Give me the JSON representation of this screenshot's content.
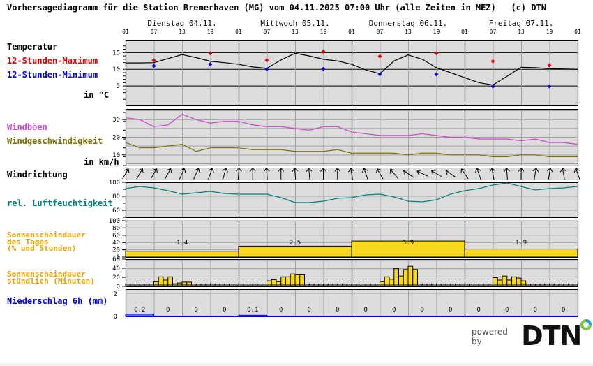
{
  "header": {
    "title": "Vorhersagediagramm für die Station Bremerhaven (MG) vom 04.11.2025 07:00 Uhr (alle Zeiten in MEZ)   (c) DTN",
    "days": [
      "Dienstag 04.11.",
      "Mittwoch 05.11.",
      "Donnerstag 06.11.",
      "Freitag 07.11."
    ],
    "hours": [
      "01",
      "07",
      "13",
      "19",
      "01",
      "07",
      "13",
      "19",
      "01",
      "07",
      "13",
      "19",
      "01",
      "07",
      "13",
      "19",
      "01"
    ]
  },
  "labels": {
    "temperatur": "Temperatur",
    "max12": "12-Stunden-Maximum",
    "min12": "12-Stunden-Minimum",
    "temp_unit": "in °C",
    "windboeen": "Windböen",
    "windgeschw": "Windgeschwindigkeit",
    "wind_unit": "in km/h",
    "windrichtung": "Windrichtung",
    "feuchte": "rel. Luftfeuchtigkeit",
    "sonne_tag_1": "Sonnenscheindauer",
    "sonne_tag_2": "des Tages",
    "sonne_tag_3": "(% und Stunden)",
    "sonne_std_1": "Sonnenscheindauer",
    "sonne_std_2": "stündlich (Minuten)",
    "niederschlag": "Niederschlag 6h (mm)"
  },
  "colors": {
    "plot_bg": "#dcdcdc",
    "grid": "#a0a0a0",
    "max": "#e00000",
    "min": "#0000e0",
    "gust": "#cc44cc",
    "wind": "#7a7000",
    "humidity": "#008080",
    "sun_label": "#e8a000",
    "sun_bar": "#f7d81e",
    "precip": "#0000dd",
    "precip_bar": "#5b6be8"
  },
  "footer": {
    "powered_by": "powered by",
    "brand": "DTN"
  },
  "chart_data": [
    {
      "type": "line",
      "title": "Temperatur",
      "ylabel": "in °C",
      "ylim": [
        0,
        18
      ],
      "yticks": [
        5,
        10,
        15
      ],
      "x_hours_from_start": [
        0,
        3,
        6,
        9,
        12,
        15,
        18,
        21,
        24,
        27,
        30,
        33,
        36,
        39,
        42,
        45,
        48,
        51,
        54,
        57,
        60,
        63,
        66,
        69,
        72,
        75,
        78,
        81,
        84,
        87,
        90,
        93,
        96
      ],
      "series": [
        {
          "name": "Temperatur",
          "values": [
            11.9,
            11.9,
            12.0,
            13.2,
            14.4,
            13.5,
            12.4,
            12.0,
            11.5,
            10.7,
            10.3,
            12.8,
            14.8,
            14.0,
            13.0,
            12.5,
            11.5,
            9.8,
            8.7,
            12.5,
            14.3,
            13.0,
            10.5,
            9.0,
            7.5,
            6.0,
            5.3,
            7.9,
            10.6,
            10.5,
            10.2,
            10.1,
            10.0
          ]
        }
      ],
      "points": {
        "max": [
          {
            "hour": 6,
            "value": 12.7
          },
          {
            "hour": 18,
            "value": 14.8
          },
          {
            "hour": 30,
            "value": 12.7
          },
          {
            "hour": 42,
            "value": 15.3
          },
          {
            "hour": 54,
            "value": 13.9
          },
          {
            "hour": 66,
            "value": 14.8
          },
          {
            "hour": 78,
            "value": 12.4
          },
          {
            "hour": 90,
            "value": 11.2
          }
        ],
        "min": [
          {
            "hour": 6,
            "value": 11.0
          },
          {
            "hour": 18,
            "value": 11.5
          },
          {
            "hour": 30,
            "value": 10.0
          },
          {
            "hour": 42,
            "value": 10.1
          },
          {
            "hour": 54,
            "value": 8.5
          },
          {
            "hour": 66,
            "value": 8.5
          },
          {
            "hour": 78,
            "value": 4.9
          },
          {
            "hour": 90,
            "value": 4.9
          }
        ]
      }
    },
    {
      "type": "line",
      "title": "Wind",
      "ylabel": "in km/h",
      "ylim": [
        4,
        36
      ],
      "yticks": [
        10,
        20,
        30
      ],
      "x_hours_from_start": [
        0,
        3,
        6,
        9,
        12,
        15,
        18,
        21,
        24,
        27,
        30,
        33,
        36,
        39,
        42,
        45,
        48,
        51,
        54,
        57,
        60,
        63,
        66,
        69,
        72,
        75,
        78,
        81,
        84,
        87,
        90,
        93,
        96
      ],
      "series": [
        {
          "name": "Windböen",
          "values": [
            31,
            30,
            26,
            27,
            33,
            30,
            28,
            29,
            29,
            27,
            26,
            26,
            25,
            24,
            26,
            26,
            23,
            22,
            21,
            21,
            21,
            22,
            21,
            20,
            20,
            19,
            19,
            19,
            18,
            19,
            17,
            17,
            16
          ]
        },
        {
          "name": "Windgeschwindigkeit",
          "values": [
            17,
            14,
            14,
            15,
            16,
            12,
            14,
            14,
            14,
            13,
            13,
            13,
            12,
            12,
            12,
            13,
            11,
            11,
            11,
            11,
            10,
            11,
            11,
            10,
            10,
            10,
            9,
            9,
            10,
            10,
            9,
            9,
            9
          ]
        }
      ]
    },
    {
      "type": "table",
      "title": "Windrichtung",
      "description": "Pfeile alle 3 Stunden (Richtung aus der der Wind weht nach oben zeigend: überwiegend S bis SW am 04./05., SO am 06., S am 07.)",
      "count": 33
    },
    {
      "type": "line",
      "title": "rel. Luftfeuchtigkeit",
      "ylim": [
        50,
        100
      ],
      "yticks": [
        60,
        80,
        100
      ],
      "x_hours_from_start": [
        0,
        3,
        6,
        9,
        12,
        15,
        18,
        21,
        24,
        27,
        30,
        33,
        36,
        39,
        42,
        45,
        48,
        51,
        54,
        57,
        60,
        63,
        66,
        69,
        72,
        75,
        78,
        81,
        84,
        87,
        90,
        93,
        96
      ],
      "series": [
        {
          "name": "rel. Luftfeuchtigkeit",
          "values": [
            91,
            94,
            92,
            88,
            83,
            85,
            87,
            84,
            83,
            83,
            83,
            78,
            71,
            71,
            73,
            77,
            78,
            82,
            83,
            79,
            73,
            72,
            75,
            83,
            88,
            91,
            96,
            99,
            94,
            89,
            91,
            92,
            94
          ]
        }
      ]
    },
    {
      "type": "bar",
      "title": "Sonnenscheindauer des Tages (% und Stunden)",
      "ylim": [
        0,
        100
      ],
      "yticks": [
        0,
        20,
        40,
        60,
        80,
        100
      ],
      "categories": [
        "Dienstag 04.11.",
        "Mittwoch 05.11.",
        "Donnerstag 06.11.",
        "Freitag 07.11."
      ],
      "values_percent": [
        16,
        30,
        44,
        22
      ],
      "values_hours": [
        1.4,
        2.5,
        3.9,
        1.9
      ]
    },
    {
      "type": "bar",
      "title": "Sonnenscheindauer stündlich (Minuten)",
      "ylim": [
        0,
        60
      ],
      "yticks": [
        0,
        20,
        40,
        60
      ],
      "series": [
        {
          "name": "04.11.",
          "start_hour": 6,
          "values": [
            8,
            20,
            12,
            20,
            3,
            5,
            7,
            7
          ]
        },
        {
          "name": "05.11.",
          "start_hour": 30,
          "values": [
            10,
            13,
            8,
            20,
            20,
            27,
            25,
            25
          ]
        },
        {
          "name": "06.11.",
          "start_hour": 54,
          "values": [
            8,
            20,
            14,
            40,
            22,
            38,
            46,
            38
          ]
        },
        {
          "name": "07.11.",
          "start_hour": 78,
          "values": [
            18,
            12,
            22,
            12,
            20,
            17,
            10
          ]
        }
      ]
    },
    {
      "type": "bar",
      "title": "Niederschlag 6h (mm)",
      "ylim": [
        0,
        2
      ],
      "yticks": [
        0,
        2
      ],
      "categories": [
        "01-07",
        "07-13",
        "13-19",
        "19-01",
        "01-07",
        "07-13",
        "13-19",
        "19-01",
        "01-07",
        "07-13",
        "13-19",
        "19-01",
        "01-07",
        "07-13",
        "13-19",
        "19-01"
      ],
      "values": [
        0.2,
        0,
        0,
        0,
        0.1,
        0,
        0,
        0,
        0,
        0,
        0,
        0,
        0,
        0,
        0,
        0
      ],
      "value_labels": [
        "0.2",
        "0",
        "0",
        "0",
        "0.1",
        "0",
        "0",
        "0",
        "0",
        "0",
        "0",
        "0",
        "0",
        "0",
        "0",
        "0"
      ]
    }
  ]
}
